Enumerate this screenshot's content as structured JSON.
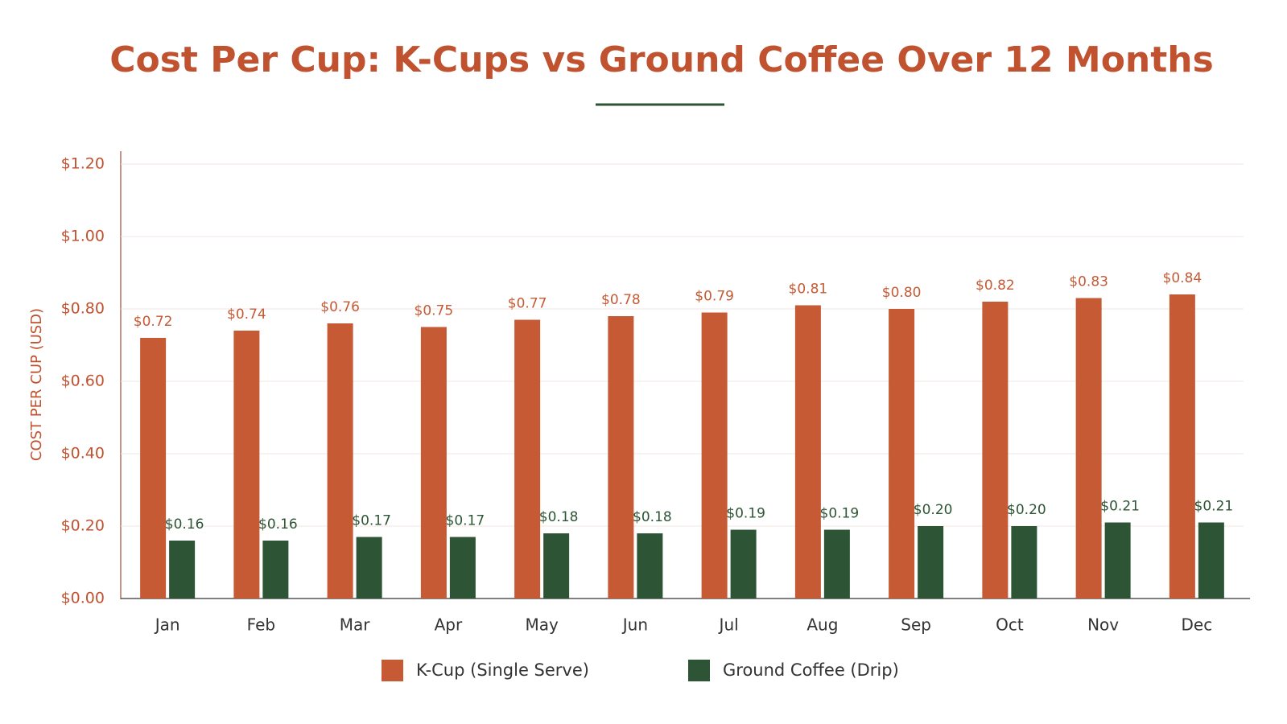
{
  "chart_data": {
    "type": "bar",
    "title": "Cost Per Cup: K-Cups vs Ground Coffee Over 12 Months",
    "y_label": "COST PER CUP (USD)",
    "categories": [
      "Jan",
      "Feb",
      "Mar",
      "Apr",
      "May",
      "Jun",
      "Jul",
      "Aug",
      "Sep",
      "Oct",
      "Nov",
      "Dec"
    ],
    "series": [
      {
        "name": "K-Cup (Single Serve)",
        "color": "#c55a35",
        "values": [
          0.72,
          0.74,
          0.76,
          0.75,
          0.77,
          0.78,
          0.79,
          0.81,
          0.8,
          0.82,
          0.83,
          0.84
        ],
        "value_labels": [
          "$0.72",
          "$0.74",
          "$0.76",
          "$0.75",
          "$0.77",
          "$0.78",
          "$0.79",
          "$0.81",
          "$0.80",
          "$0.82",
          "$0.83",
          "$0.84"
        ]
      },
      {
        "name": "Ground Coffee (Drip)",
        "color": "#2d5535",
        "values": [
          0.16,
          0.16,
          0.17,
          0.17,
          0.18,
          0.18,
          0.19,
          0.19,
          0.2,
          0.2,
          0.21,
          0.21
        ],
        "value_labels": [
          "$0.16",
          "$0.16",
          "$0.17",
          "$0.17",
          "$0.18",
          "$0.18",
          "$0.19",
          "$0.19",
          "$0.20",
          "$0.20",
          "$0.21",
          "$0.21"
        ]
      }
    ],
    "ylim": [
      0,
      1.2
    ],
    "yticks": [
      {
        "value": 0,
        "label": "$0.00"
      },
      {
        "value": 0.2,
        "label": "$0.20"
      },
      {
        "value": 0.4,
        "label": "$0.40"
      },
      {
        "value": 0.6,
        "label": "$0.60"
      },
      {
        "value": 0.8,
        "label": "$0.80"
      },
      {
        "value": 1.0,
        "label": "$1.00"
      },
      {
        "value": 1.2,
        "label": "$1.20"
      }
    ],
    "grid": true
  }
}
